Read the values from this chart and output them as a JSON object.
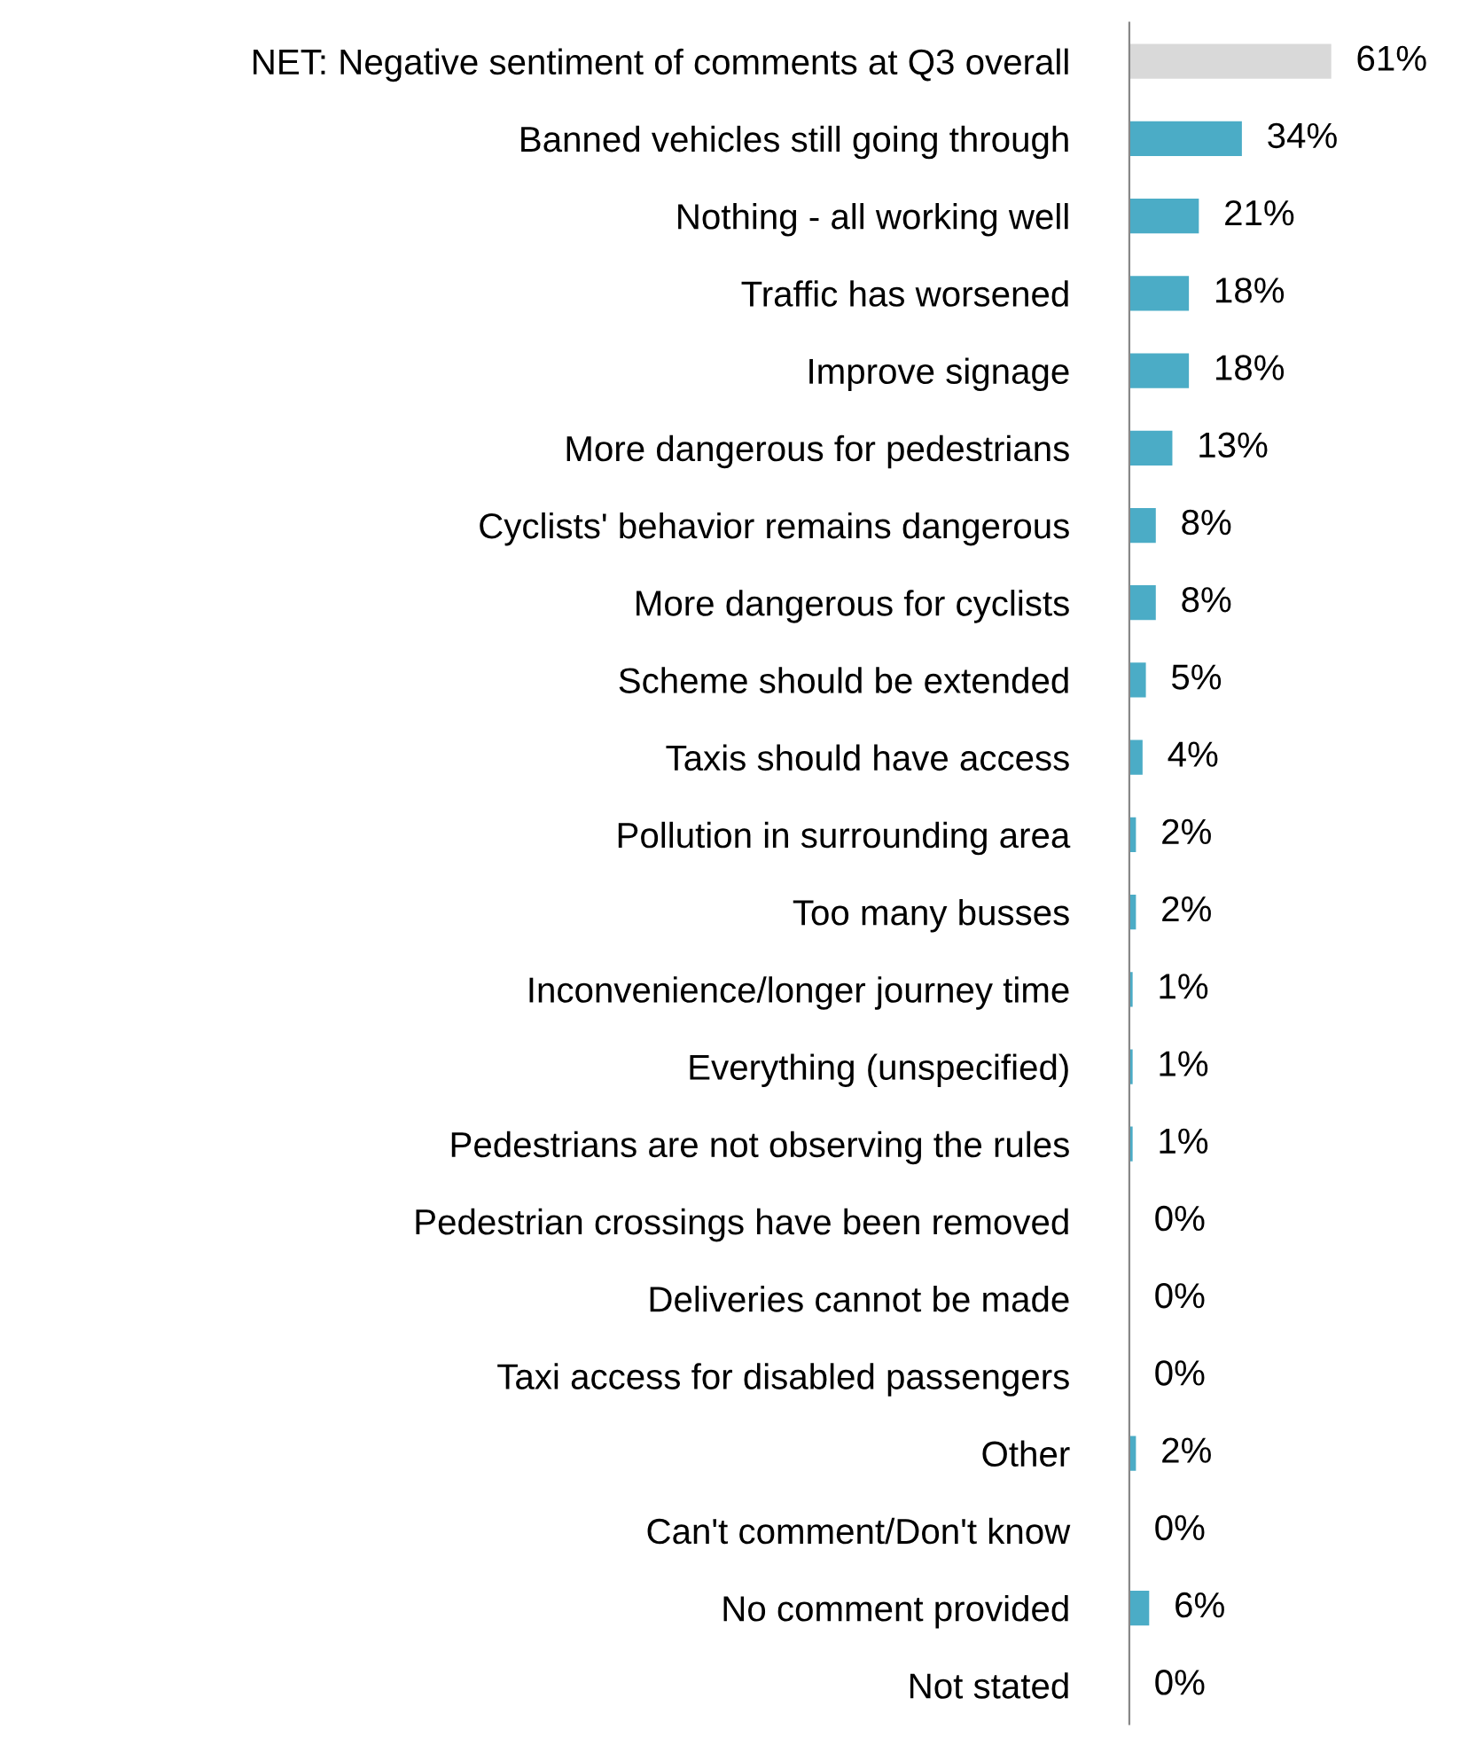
{
  "chart_data": {
    "type": "bar",
    "orientation": "horizontal",
    "data_labels": true,
    "grid": false,
    "legend": false,
    "tick_labels": "y",
    "categories": [
      "NET: Negative sentiment of comments at Q3 overall",
      "Banned vehicles still going through",
      "Nothing - all working well",
      "Traffic has worsened",
      "Improve signage",
      "More dangerous for pedestrians",
      "Cyclists' behavior remains dangerous",
      "More dangerous for cyclists",
      "Scheme should be extended",
      "Taxis should have access",
      "Pollution in surrounding area",
      "Too many busses",
      "Inconvenience/longer journey time",
      "Everything (unspecified)",
      "Pedestrians are not observing the rules",
      "Pedestrian crossings have been removed",
      "Deliveries cannot be made",
      "Taxi access for disabled passengers",
      "Other",
      "Can't comment/Don't know",
      "No comment provided",
      "Not stated"
    ],
    "values": [
      61,
      34,
      21,
      18,
      18,
      13,
      8,
      8,
      5,
      4,
      2,
      2,
      1,
      1,
      1,
      0,
      0,
      0,
      2,
      0,
      6,
      0
    ],
    "value_labels": [
      "61%",
      "34%",
      "21%",
      "18%",
      "18%",
      "13%",
      "8%",
      "8%",
      "5%",
      "4%",
      "2%",
      "2%",
      "1%",
      "1%",
      "1%",
      "0%",
      "0%",
      "0%",
      "2%",
      "0%",
      "6%",
      "0%"
    ],
    "colors": [
      "#d9d9d9",
      "#4bacc6",
      "#4bacc6",
      "#4bacc6",
      "#4bacc6",
      "#4bacc6",
      "#4bacc6",
      "#4bacc6",
      "#4bacc6",
      "#4bacc6",
      "#4bacc6",
      "#4bacc6",
      "#4bacc6",
      "#4bacc6",
      "#4bacc6",
      "#4bacc6",
      "#4bacc6",
      "#4bacc6",
      "#4bacc6",
      "#4bacc6",
      "#4bacc6",
      "#4bacc6"
    ]
  }
}
